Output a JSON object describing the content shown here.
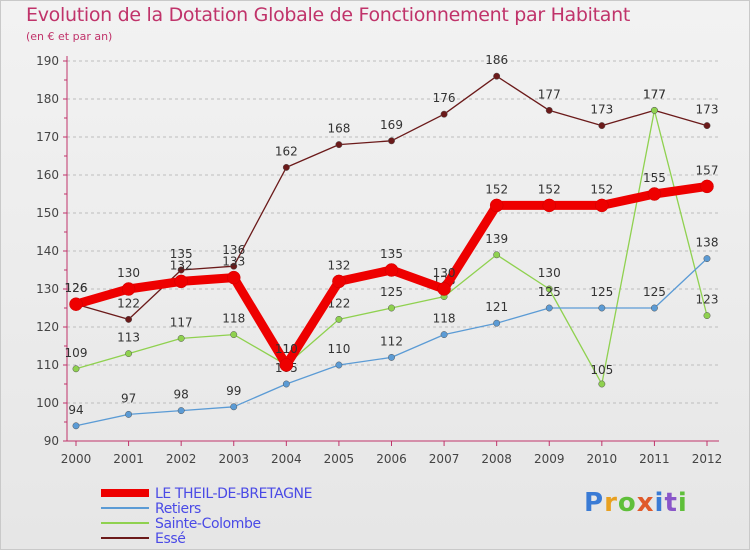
{
  "header": {
    "title": "Evolution de la Dotation Globale de Fonctionnement par Habitant",
    "subtitle": "(en € et par an)"
  },
  "chart_data": {
    "type": "line",
    "title": "Evolution de la Dotation Globale de Fonctionnement par Habitant",
    "subtitle": "(en € et par an)",
    "xlabel": "",
    "ylabel": "",
    "x": [
      "2000",
      "2001",
      "2002",
      "2003",
      "2004",
      "2005",
      "2006",
      "2007",
      "2008",
      "2009",
      "2010",
      "2011",
      "2012"
    ],
    "ylim": [
      90,
      190
    ],
    "yticks": [
      90,
      100,
      110,
      120,
      130,
      140,
      150,
      160,
      170,
      180,
      190
    ],
    "grid": "horizontal dashed",
    "legend_position": "bottom-left",
    "series": [
      {
        "name": "LE THEIL-DE-BRETAGNE",
        "color": "#ee0000",
        "values": [
          126,
          130,
          132,
          133,
          110,
          132,
          135,
          130,
          152,
          152,
          152,
          155,
          157
        ]
      },
      {
        "name": "Retiers",
        "color": "#5b9bd5",
        "values": [
          94,
          97,
          98,
          99,
          105,
          110,
          112,
          118,
          121,
          125,
          125,
          125,
          138
        ]
      },
      {
        "name": "Sainte-Colombe",
        "color": "#8fd14f",
        "values": [
          109,
          113,
          117,
          118,
          110,
          122,
          125,
          128,
          139,
          130,
          105,
          177,
          123
        ]
      },
      {
        "name": "Essé",
        "color": "#6b1a1a",
        "values": [
          126,
          122,
          135,
          136,
          162,
          168,
          169,
          176,
          186,
          177,
          173,
          177,
          173
        ]
      }
    ]
  },
  "logo": {
    "letters": [
      "P",
      "r",
      "o",
      "x",
      "i",
      "t",
      "i"
    ],
    "colors": [
      "#3a7bd5",
      "#e8a020",
      "#5fbf3a",
      "#e05a2a",
      "#3a7bd5",
      "#8a56c9",
      "#5fbf3a"
    ]
  }
}
